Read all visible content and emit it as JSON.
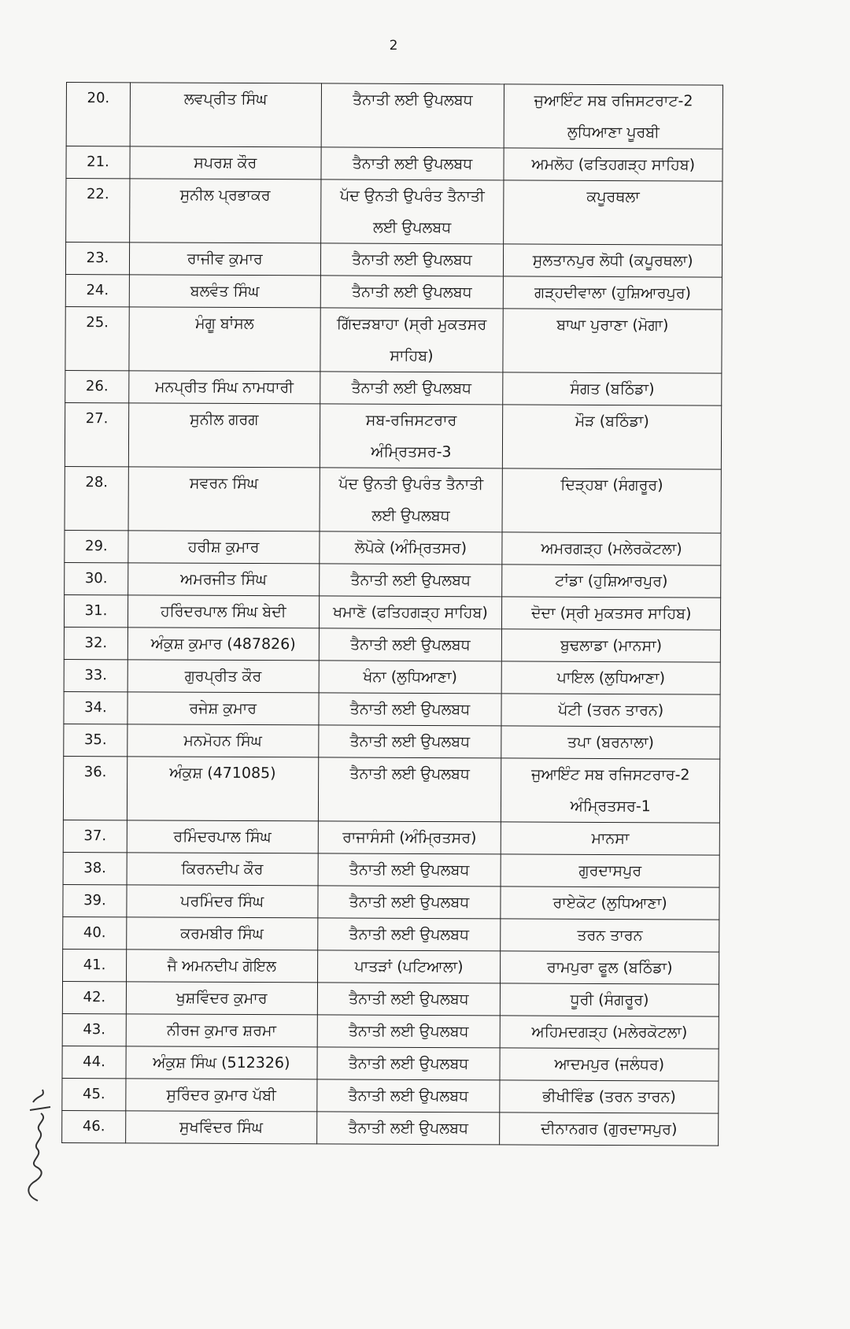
{
  "page_number": "2",
  "rows": [
    {
      "sn": "20.",
      "name": "ਲਵਪ੍ਰੀਤ ਸਿੰਘ",
      "from": "ਤੈਨਾਤੀ ਲਈ ਉਪਲਬਧ",
      "to": "ਜੁਆਇੰਟ ਸਬ ਰਜਿਸਟਰਾਟ-2 ਲੁਧਿਆਣਾ ਪੂਰਬੀ"
    },
    {
      "sn": "21.",
      "name": "ਸਪਰਸ਼ ਕੌਰ",
      "from": "ਤੈਨਾਤੀ ਲਈ ਉਪਲਬਧ",
      "to": "ਅਮਲੋਹ (ਫਤਿਹਗੜ੍ਹ ਸਾਹਿਬ)"
    },
    {
      "sn": "22.",
      "name": "ਸੁਨੀਲ ਪ੍ਰਭਾਕਰ",
      "from": "ਪੱਦ ਉਨਤੀ ਉਪਰੰਤ ਤੈਨਾਤੀ ਲਈ ਉਪਲਬਧ",
      "to": "ਕਪੂਰਥਲਾ"
    },
    {
      "sn": "23.",
      "name": "ਰਾਜੀਵ ਕੁਮਾਰ",
      "from": "ਤੈਨਾਤੀ ਲਈ ਉਪਲਬਧ",
      "to": "ਸੁਲਤਾਨਪੁਰ ਲੋਧੀ (ਕਪੂਰਥਲਾ)"
    },
    {
      "sn": "24.",
      "name": "ਬਲਵੰਤ ਸਿੰਘ",
      "from": "ਤੈਨਾਤੀ ਲਈ ਉਪਲਬਧ",
      "to": "ਗੜ੍ਹਦੀਵਾਲਾ (ਹੁਸ਼ਿਆਰਪੁਰ)"
    },
    {
      "sn": "25.",
      "name": "ਮੰਗੂ ਬਾਂਸਲ",
      "from": "ਗਿੱਦੜਬਾਹਾ (ਸ੍ਰੀ ਮੁਕਤਸਰ ਸਾਹਿਬ)",
      "to": "ਬਾਘਾ ਪੁਰਾਣਾ (ਮੋਗਾ)"
    },
    {
      "sn": "26.",
      "name": "ਮਨਪ੍ਰੀਤ ਸਿੰਘ ਨਾਮਧਾਰੀ",
      "from": "ਤੈਨਾਤੀ ਲਈ ਉਪਲਬਧ",
      "to": "ਸੰਗਤ (ਬਠਿੰਡਾ)"
    },
    {
      "sn": "27.",
      "name": "ਸੁਨੀਲ ਗਰਗ",
      "from": "ਸਬ-ਰਜਿਸਟਰਾਰ ਅੰਮ੍ਰਿਤਸਰ-3",
      "to": "ਮੌੜ (ਬਠਿੰਡਾ)"
    },
    {
      "sn": "28.",
      "name": "ਸਵਰਨ ਸਿੰਘ",
      "from": "ਪੱਦ ਉਨਤੀ ਉਪਰੰਤ ਤੈਨਾਤੀ ਲਈ ਉਪਲਬਧ",
      "to": "ਦਿੜ੍ਹਬਾ (ਸੰਗਰੂਰ)"
    },
    {
      "sn": "29.",
      "name": "ਹਰੀਸ਼ ਕੁਮਾਰ",
      "from": "ਲੋਪੋਕੇ (ਅੰਮ੍ਰਿਤਸਰ)",
      "to": "ਅਮਰਗੜ੍ਹ (ਮਲੇਰਕੋਟਲਾ)"
    },
    {
      "sn": "30.",
      "name": "ਅਮਰਜੀਤ ਸਿੰਘ",
      "from": "ਤੈਨਾਤੀ ਲਈ ਉਪਲਬਧ",
      "to": "ਟਾਂਡਾ (ਹੁਸ਼ਿਆਰਪੁਰ)"
    },
    {
      "sn": "31.",
      "name": "ਹਰਿੰਦਰਪਾਲ ਸਿੰਘ ਬੇਦੀ",
      "from": "ਖਮਾਣੋ (ਫਤਿਹਗੜ੍ਹ ਸਾਹਿਬ)",
      "to": "ਦੋਦਾ (ਸ੍ਰੀ ਮੁਕਤਸਰ ਸਾਹਿਬ)"
    },
    {
      "sn": "32.",
      "name": "ਅੰਕੁਸ਼ ਕੁਮਾਰ (487826)",
      "from": "ਤੈਨਾਤੀ ਲਈ ਉਪਲਬਧ",
      "to": "ਬੁਢਲਾਡਾ (ਮਾਨਸਾ)"
    },
    {
      "sn": "33.",
      "name": "ਗੁਰਪ੍ਰੀਤ ਕੌਰ",
      "from": "ਖੰਨਾ (ਲੁਧਿਆਣਾ)",
      "to": "ਪਾਇਲ (ਲੁਧਿਆਣਾ)"
    },
    {
      "sn": "34.",
      "name": "ਰਜੇਸ਼ ਕੁਮਾਰ",
      "from": "ਤੈਨਾਤੀ ਲਈ ਉਪਲਬਧ",
      "to": "ਪੱਟੀ (ਤਰਨ ਤਾਰਨ)"
    },
    {
      "sn": "35.",
      "name": "ਮਨਮੋਹਨ ਸਿੰਘ",
      "from": "ਤੈਨਾਤੀ ਲਈ ਉਪਲਬਧ",
      "to": "ਤਪਾ (ਬਰਨਾਲਾ)"
    },
    {
      "sn": "36.",
      "name": "ਅੰਕੁਸ਼ (471085)",
      "from": "ਤੈਨਾਤੀ ਲਈ ਉਪਲਬਧ",
      "to": "ਜੁਆਇੰਟ ਸਬ ਰਜਿਸਟਰਾਰ-2 ਅੰਮ੍ਰਿਤਸਰ-1"
    },
    {
      "sn": "37.",
      "name": "ਰਮਿੰਦਰਪਾਲ ਸਿੰਘ",
      "from": "ਰਾਜਾਸੰਸੀ (ਅੰਮ੍ਰਿਤਸਰ)",
      "to": "ਮਾਨਸਾ"
    },
    {
      "sn": "38.",
      "name": "ਕਿਰਨਦੀਪ ਕੌਰ",
      "from": "ਤੈਨਾਤੀ ਲਈ ਉਪਲਬਧ",
      "to": "ਗੁਰਦਾਸਪੁਰ"
    },
    {
      "sn": "39.",
      "name": "ਪਰਮਿੰਦਰ ਸਿੰਘ",
      "from": "ਤੈਨਾਤੀ ਲਈ ਉਪਲਬਧ",
      "to": "ਰਾਏਕੋਟ (ਲੁਧਿਆਣਾ)"
    },
    {
      "sn": "40.",
      "name": "ਕਰਮਬੀਰ ਸਿੰਘ",
      "from": "ਤੈਨਾਤੀ ਲਈ ਉਪਲਬਧ",
      "to": "ਤਰਨ ਤਾਰਨ"
    },
    {
      "sn": "41.",
      "name": "ਜੈ ਅਮਨਦੀਪ ਗੋਇਲ",
      "from": "ਪਾਤੜਾਂ (ਪਟਿਆਲਾ)",
      "to": "ਰਾਮਪੁਰਾ ਫੂਲ (ਬਠਿੰਡਾ)"
    },
    {
      "sn": "42.",
      "name": "ਖੁਸ਼ਵਿੰਦਰ ਕੁਮਾਰ",
      "from": "ਤੈਨਾਤੀ ਲਈ ਉਪਲਬਧ",
      "to": "ਧੂਰੀ (ਸੰਗਰੂਰ)"
    },
    {
      "sn": "43.",
      "name": "ਨੀਰਜ ਕੁਮਾਰ ਸ਼ਰਮਾ",
      "from": "ਤੈਨਾਤੀ ਲਈ ਉਪਲਬਧ",
      "to": "ਅਹਿਮਦਗੜ੍ਹ (ਮਲੇਰਕੋਟਲਾ)"
    },
    {
      "sn": "44.",
      "name": "ਅੰਕੁਸ਼ ਸਿੰਘ (512326)",
      "from": "ਤੈਨਾਤੀ ਲਈ ਉਪਲਬਧ",
      "to": "ਆਦਮਪੁਰ (ਜਲੰਧਰ)"
    },
    {
      "sn": "45.",
      "name": "ਸੁਰਿੰਦਰ ਕੁਮਾਰ ਪੱਬੀ",
      "from": "ਤੈਨਾਤੀ ਲਈ ਉਪਲਬਧ",
      "to": "ਭੀਖੀਵਿੰਡ (ਤਰਨ ਤਾਰਨ)"
    },
    {
      "sn": "46.",
      "name": "ਸੁਖਵਿੰਦਰ ਸਿੰਘ",
      "from": "ਤੈਨਾਤੀ ਲਈ ਉਪਲਬਧ",
      "to": "ਦੀਨਾਨਗਰ (ਗੁਰਦਾਸਪੁਰ)"
    }
  ]
}
